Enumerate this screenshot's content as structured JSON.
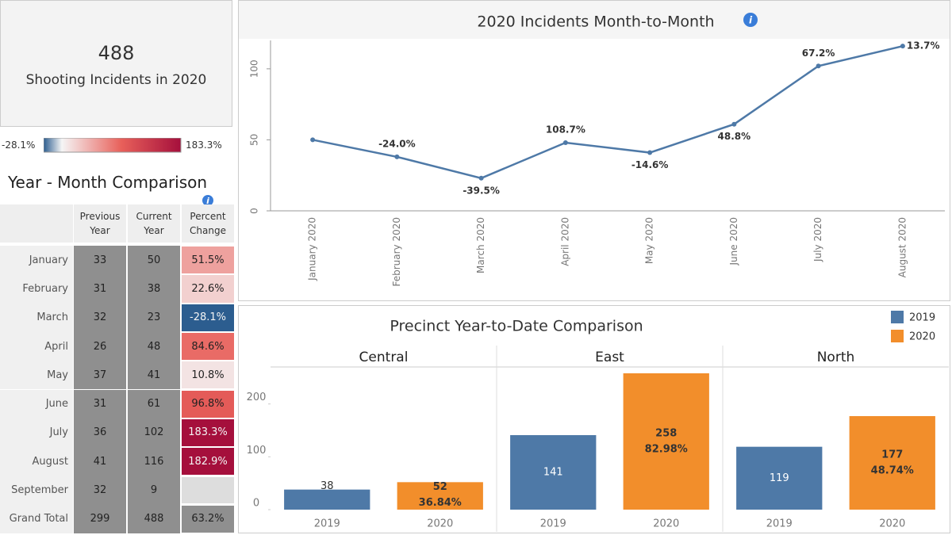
{
  "kpi": {
    "value": 488,
    "label": "Shooting Incidents in 2020"
  },
  "color_scale": {
    "min": {
      "value": -28.1,
      "label": "-28.1%"
    },
    "max": {
      "value": 183.3,
      "label": "183.3%"
    }
  },
  "table": {
    "title": "Year - Month Comparison",
    "columns": [
      "Previous Year",
      "Current Year",
      "Percent Change"
    ],
    "rows": [
      [
        "January",
        33,
        50,
        {
          "value": 51.5,
          "label": "51.5%"
        }
      ],
      [
        "February",
        31,
        38,
        {
          "value": 22.6,
          "label": "22.6%"
        }
      ],
      [
        "March",
        32,
        23,
        {
          "value": -28.1,
          "label": "-28.1%"
        }
      ],
      [
        "April",
        26,
        48,
        {
          "value": 84.6,
          "label": "84.6%"
        }
      ],
      [
        "May",
        37,
        41,
        {
          "value": 10.8,
          "label": "10.8%"
        }
      ],
      [
        "June",
        31,
        61,
        {
          "value": 96.8,
          "label": "96.8%"
        }
      ],
      [
        "July",
        36,
        102,
        {
          "value": 183.3,
          "label": "183.3%"
        }
      ],
      [
        "August",
        41,
        116,
        {
          "value": 182.9,
          "label": "182.9%"
        }
      ],
      [
        "September",
        32,
        9,
        null
      ]
    ],
    "total": [
      "Grand Total",
      299,
      488,
      {
        "value": 63.2,
        "label": "63.2%"
      }
    ]
  },
  "chart_data": [
    {
      "type": "line",
      "title": "2020 Incidents Month-to-Month",
      "categories": [
        "January 2020",
        "February 2020",
        "March 2020",
        "April 2020",
        "May 2020",
        "June 2020",
        "July 2020",
        "August 2020"
      ],
      "values": [
        50,
        38,
        23,
        48,
        41,
        61,
        102,
        116
      ],
      "annotations": [
        null,
        "-24.0%",
        "-39.5%",
        "108.7%",
        "-14.6%",
        "48.8%",
        "67.2%",
        "13.7%"
      ],
      "color": "#4e79a7",
      "ylim": [
        0,
        120
      ],
      "yticks": [
        0,
        50,
        100
      ]
    },
    {
      "type": "faceted_bar",
      "title": "Precinct Year-to-Date Comparison",
      "facets": [
        "Central",
        "East",
        "North"
      ],
      "series": [
        {
          "name": "2019",
          "color": "#4e79a7",
          "values": [
            38,
            141,
            119
          ]
        },
        {
          "name": "2020",
          "color": "#f28e2b",
          "values": [
            52,
            258,
            177
          ],
          "annotations": [
            "36.84%",
            "82.98%",
            "48.74%"
          ]
        }
      ],
      "ylim": [
        0,
        270
      ],
      "yticks": [
        0,
        100,
        200
      ],
      "legend": "top-right"
    }
  ]
}
